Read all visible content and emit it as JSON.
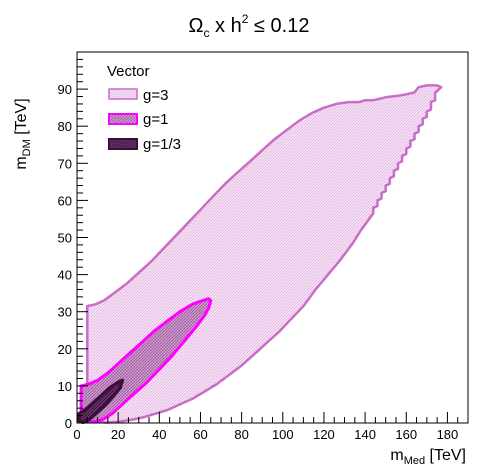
{
  "chart_data": {
    "type": "area",
    "title_main": "Ω",
    "title_sub1": "c",
    "title_mid": " x h",
    "title_sup": "2",
    "title_tail": " ≤ 0.12",
    "xlabel_main": "m",
    "xlabel_sub": "Med",
    "xlabel_unit": " [TeV]",
    "ylabel_main": "m",
    "ylabel_sub": "DM",
    "ylabel_unit": " [TeV]",
    "xlim": [
      0,
      190
    ],
    "ylim": [
      0,
      100
    ],
    "x_ticks": [
      0,
      20,
      40,
      60,
      80,
      100,
      120,
      140,
      160,
      180
    ],
    "y_ticks": [
      0,
      10,
      20,
      30,
      40,
      50,
      60,
      70,
      80,
      90
    ],
    "grid": false,
    "legend_position": "top-left",
    "legend_title": "Vector",
    "series": [
      {
        "name": "g=3",
        "color": "#c86dc8",
        "fill": "#f2d5f2",
        "polygon": [
          [
            5,
            31.5
          ],
          [
            9,
            32
          ],
          [
            13,
            33
          ],
          [
            18,
            35
          ],
          [
            24,
            37.5
          ],
          [
            30,
            40.5
          ],
          [
            36,
            43.5
          ],
          [
            42,
            47
          ],
          [
            48,
            50.5
          ],
          [
            54,
            54
          ],
          [
            60,
            57.5
          ],
          [
            66,
            61
          ],
          [
            72,
            64.5
          ],
          [
            78,
            67.5
          ],
          [
            84,
            70.5
          ],
          [
            90,
            73.5
          ],
          [
            96,
            76.5
          ],
          [
            102,
            79
          ],
          [
            108,
            81.5
          ],
          [
            114,
            83.5
          ],
          [
            120,
            85
          ],
          [
            126,
            86
          ],
          [
            132,
            86.5
          ],
          [
            137,
            86.5
          ],
          [
            140,
            87
          ],
          [
            144,
            87
          ],
          [
            150,
            87.8
          ],
          [
            156,
            88.2
          ],
          [
            160,
            88.6
          ],
          [
            164,
            89.1
          ],
          [
            166,
            90.5
          ],
          [
            170,
            91
          ],
          [
            175,
            91
          ],
          [
            177,
            90.5
          ],
          [
            174,
            89
          ],
          [
            174,
            87
          ],
          [
            172,
            86.5
          ],
          [
            172,
            84.5
          ],
          [
            170,
            84
          ],
          [
            170,
            82.5
          ],
          [
            168,
            82
          ],
          [
            168,
            80.5
          ],
          [
            166,
            80
          ],
          [
            166,
            78.5
          ],
          [
            164,
            78
          ],
          [
            164,
            76.5
          ],
          [
            162,
            76
          ],
          [
            162,
            74.5
          ],
          [
            160,
            74
          ],
          [
            160,
            72.5
          ],
          [
            158,
            72
          ],
          [
            158,
            70.5
          ],
          [
            156,
            70
          ],
          [
            156,
            68.5
          ],
          [
            154,
            68
          ],
          [
            154,
            66.5
          ],
          [
            152,
            66
          ],
          [
            152,
            64.5
          ],
          [
            150,
            64
          ],
          [
            150,
            62.5
          ],
          [
            148,
            62
          ],
          [
            148,
            60.5
          ],
          [
            146,
            60
          ],
          [
            146,
            58.5
          ],
          [
            144,
            58
          ],
          [
            144,
            56.5
          ],
          [
            142,
            55
          ],
          [
            140,
            53.5
          ],
          [
            138,
            52
          ],
          [
            134,
            48.5
          ],
          [
            128,
            44
          ],
          [
            122,
            40
          ],
          [
            116,
            36
          ],
          [
            110,
            31.5
          ],
          [
            104,
            28
          ],
          [
            98,
            24.5
          ],
          [
            92,
            21.5
          ],
          [
            86,
            18.5
          ],
          [
            80,
            15.5
          ],
          [
            74,
            13
          ],
          [
            68,
            10.5
          ],
          [
            62,
            8.5
          ],
          [
            56,
            6.5
          ],
          [
            50,
            5
          ],
          [
            44,
            3.5
          ],
          [
            38,
            2.5
          ],
          [
            32,
            1.5
          ],
          [
            26,
            0.8
          ],
          [
            20,
            0.3
          ],
          [
            14,
            0.1
          ],
          [
            10,
            0.5
          ],
          [
            8,
            2
          ],
          [
            6,
            4
          ],
          [
            5,
            7
          ],
          [
            5,
            31.5
          ]
        ]
      },
      {
        "name": "g=1",
        "color": "#ff00ff",
        "fill": "#c77dc7",
        "polygon": [
          [
            2,
            10
          ],
          [
            6,
            10.5
          ],
          [
            10,
            11.5
          ],
          [
            15,
            13.5
          ],
          [
            20,
            16
          ],
          [
            26,
            19
          ],
          [
            32,
            22
          ],
          [
            38,
            25
          ],
          [
            44,
            27.5
          ],
          [
            50,
            30
          ],
          [
            56,
            32
          ],
          [
            60,
            32.8
          ],
          [
            64,
            33.5
          ],
          [
            65,
            33
          ],
          [
            64,
            31
          ],
          [
            62,
            29
          ],
          [
            58,
            26
          ],
          [
            52,
            22
          ],
          [
            46,
            18
          ],
          [
            40,
            14.5
          ],
          [
            34,
            11
          ],
          [
            28,
            8
          ],
          [
            22,
            5
          ],
          [
            17,
            2.5
          ],
          [
            12,
            0.8
          ],
          [
            8,
            0.3
          ],
          [
            4,
            0.5
          ],
          [
            2,
            2
          ],
          [
            2,
            10
          ]
        ]
      },
      {
        "name": "g=1/3",
        "color": "#3a0f3a",
        "fill": "#7a4a7a",
        "polygon": [
          [
            1,
            2.5
          ],
          [
            4,
            3.5
          ],
          [
            8,
            5.5
          ],
          [
            12,
            7.5
          ],
          [
            16,
            9.5
          ],
          [
            20,
            11
          ],
          [
            22,
            11.5
          ],
          [
            21,
            9.5
          ],
          [
            18,
            7.5
          ],
          [
            14,
            5
          ],
          [
            10,
            3
          ],
          [
            6,
            1
          ],
          [
            3,
            0.2
          ],
          [
            1,
            0.5
          ],
          [
            1,
            2.5
          ]
        ]
      }
    ]
  }
}
